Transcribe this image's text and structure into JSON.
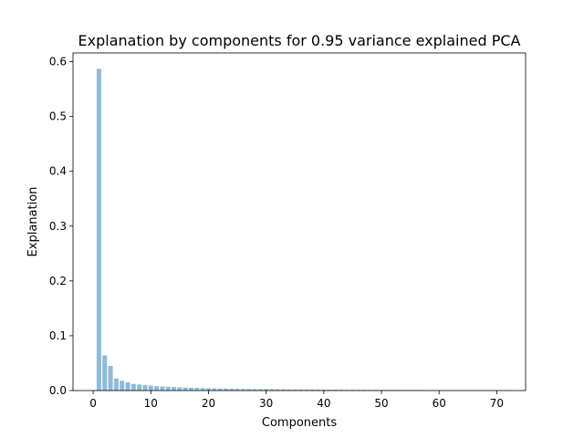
{
  "chart_data": {
    "type": "bar",
    "title": "Explanation by components for 0.95 variance explained PCA",
    "xlabel": "Components",
    "ylabel": "Explanation",
    "xlim": [
      -3.5,
      75.0
    ],
    "ylim": [
      0,
      0.616
    ],
    "xticks": [
      0,
      10,
      20,
      30,
      40,
      50,
      60,
      70
    ],
    "yticks": [
      0.0,
      0.1,
      0.2,
      0.3,
      0.4,
      0.5,
      0.6
    ],
    "bar_color": "#1f77b4",
    "bar_alpha": 0.5,
    "grid": false,
    "x": [
      1,
      2,
      3,
      4,
      5,
      6,
      7,
      8,
      9,
      10,
      11,
      12,
      13,
      14,
      15,
      16,
      17,
      18,
      19,
      20,
      21,
      22,
      23,
      24,
      25,
      26,
      27,
      28,
      29,
      30,
      31,
      32,
      33,
      34,
      35,
      36,
      37,
      38,
      39,
      40,
      41,
      42,
      43,
      44,
      45,
      46,
      47,
      48,
      49,
      50,
      51,
      52,
      53,
      54,
      55,
      56,
      57,
      58,
      59,
      60,
      61,
      62,
      63,
      64,
      65,
      66,
      67,
      68,
      69,
      70,
      71,
      72
    ],
    "values": [
      0.587,
      0.064,
      0.045,
      0.022,
      0.018,
      0.015,
      0.012,
      0.011,
      0.01,
      0.009,
      0.008,
      0.0075,
      0.007,
      0.0065,
      0.006,
      0.0055,
      0.005,
      0.0048,
      0.0045,
      0.0042,
      0.004,
      0.0038,
      0.0036,
      0.0034,
      0.0032,
      0.003,
      0.0029,
      0.0028,
      0.0027,
      0.0026,
      0.0025,
      0.0024,
      0.0023,
      0.0022,
      0.0021,
      0.002,
      0.0019,
      0.0018,
      0.0018,
      0.0017,
      0.0016,
      0.0016,
      0.0015,
      0.0015,
      0.0014,
      0.0014,
      0.0013,
      0.0013,
      0.0012,
      0.0012,
      0.0011,
      0.0011,
      0.0011,
      0.001,
      0.001,
      0.001,
      0.0009,
      0.0009,
      0.0009,
      0.0008,
      0.0008,
      0.0008,
      0.0007,
      0.0007,
      0.0007,
      0.0007,
      0.0006,
      0.0006,
      0.0006,
      0.0006,
      0.0005,
      0.0005
    ]
  }
}
